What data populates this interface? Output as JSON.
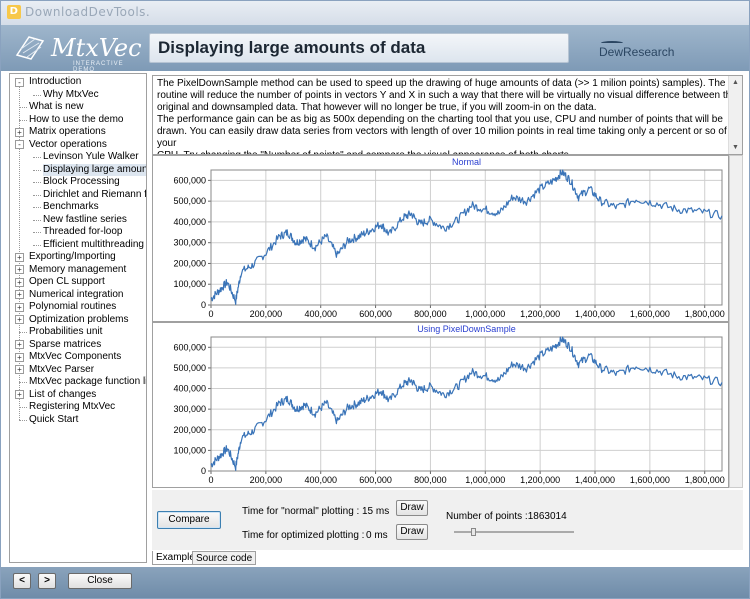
{
  "watermark": "DownloadDevTools.",
  "logo": {
    "name": "MtxVec",
    "subtitle": "INTERACTIVE DEMO"
  },
  "header_title": "Displaying large amounts of data",
  "brand": "DewResearch",
  "tree": [
    {
      "label": "Introduction",
      "level": 0,
      "toggle": "-"
    },
    {
      "label": "Why MtxVec",
      "level": 1
    },
    {
      "label": "What is new",
      "level": 0
    },
    {
      "label": "How to use the demo",
      "level": 0
    },
    {
      "label": "Matrix operations",
      "level": 0,
      "toggle": "+"
    },
    {
      "label": "Vector operations",
      "level": 0,
      "toggle": "-"
    },
    {
      "label": "Levinson Yule Walker",
      "level": 1
    },
    {
      "label": "Displaying large amounts of",
      "level": 1,
      "selected": true
    },
    {
      "label": "Block Processing",
      "level": 1
    },
    {
      "label": "Dirichlet and Riemann funct",
      "level": 1
    },
    {
      "label": "Benchmarks",
      "level": 1
    },
    {
      "label": "New fastline series",
      "level": 1
    },
    {
      "label": "Threaded for-loop",
      "level": 1
    },
    {
      "label": "Efficient multithreading",
      "level": 1
    },
    {
      "label": "Exporting/Importing",
      "level": 0,
      "toggle": "+"
    },
    {
      "label": "Memory management",
      "level": 0,
      "toggle": "+"
    },
    {
      "label": "Open CL support",
      "level": 0,
      "toggle": "+"
    },
    {
      "label": "Numerical integration",
      "level": 0,
      "toggle": "+"
    },
    {
      "label": "Polynomial routines",
      "level": 0,
      "toggle": "+"
    },
    {
      "label": "Optimization problems",
      "level": 0,
      "toggle": "+"
    },
    {
      "label": "Probabilities unit",
      "level": 0
    },
    {
      "label": "Sparse matrices",
      "level": 0,
      "toggle": "+"
    },
    {
      "label": "MtxVec Components",
      "level": 0,
      "toggle": "+"
    },
    {
      "label": "MtxVec Parser",
      "level": 0,
      "toggle": "+"
    },
    {
      "label": "MtxVec package function list",
      "level": 0
    },
    {
      "label": "List of changes",
      "level": 0,
      "toggle": "+"
    },
    {
      "label": "Registering MtxVec",
      "level": 0
    },
    {
      "label": "Quick Start",
      "level": 0
    }
  ],
  "description": [
    "The PixelDownSample method can be used to speed up the drawing of huge amounts of data (>> 1 milion points) samples). The",
    "routine will reduce the number of points in vectors Y and X in such a way that there will be virtually no visual difference between the",
    "original and downsampled data. That however will no longer be true, if you will zoom-in on the data.",
    "The performance gain can be as big as 500x depending on the charting tool that you use, CPU and number of points that will be",
    "drawn. You can easily draw data series from vectors with length of over 10 milion points in real time taking only a percent or so of your",
    "CPU. Try changing the \"Number of points\" and compare the visual appearance of both charts."
  ],
  "chart_data": [
    {
      "type": "line",
      "title": "Normal",
      "xlim": [
        0,
        1863014
      ],
      "ylim": [
        0,
        650000
      ],
      "xticks": [
        0,
        200000,
        400000,
        600000,
        800000,
        1000000,
        1200000,
        1400000,
        1600000,
        1800000
      ],
      "xtick_labels": [
        "0",
        "200,000",
        "400,000",
        "600,000",
        "800,000",
        "1,000,000",
        "1,200,000",
        "1,400,000",
        "1,600,000",
        "1,800,000"
      ],
      "yticks": [
        0,
        100000,
        200000,
        300000,
        400000,
        500000,
        600000
      ],
      "ytick_labels": [
        "0",
        "100,000",
        "200,000",
        "300,000",
        "400,000",
        "500,000",
        "600,000"
      ],
      "color": "#3a74b8",
      "grid": true,
      "series": [
        {
          "x": [
            0,
            30000,
            60000,
            90000,
            110000,
            150000,
            200000,
            250000,
            280000,
            310000,
            340000,
            380000,
            420000,
            460000,
            500000,
            540000,
            580000,
            620000,
            650000,
            700000,
            730000,
            760000,
            800000,
            850000,
            900000,
            950000,
            1000000,
            1050000,
            1100000,
            1150000,
            1200000,
            1250000,
            1280000,
            1310000,
            1340000,
            1380000,
            1420000,
            1480000,
            1550000,
            1620000,
            1700000,
            1780000,
            1863014
          ],
          "y": [
            30000,
            70000,
            110000,
            20000,
            160000,
            190000,
            250000,
            330000,
            350000,
            300000,
            320000,
            280000,
            330000,
            240000,
            310000,
            330000,
            360000,
            390000,
            340000,
            420000,
            440000,
            390000,
            410000,
            370000,
            410000,
            480000,
            460000,
            440000,
            520000,
            500000,
            560000,
            600000,
            640000,
            600000,
            520000,
            560000,
            500000,
            470000,
            510000,
            490000,
            460000,
            450000,
            430000
          ]
        }
      ]
    },
    {
      "type": "line",
      "title": "Using PixelDownSample",
      "xlim": [
        0,
        1863014
      ],
      "ylim": [
        0,
        650000
      ],
      "xticks": [
        0,
        200000,
        400000,
        600000,
        800000,
        1000000,
        1200000,
        1400000,
        1600000,
        1800000
      ],
      "xtick_labels": [
        "0",
        "200,000",
        "400,000",
        "600,000",
        "800,000",
        "1,000,000",
        "1,200,000",
        "1,400,000",
        "1,600,000",
        "1,800,000"
      ],
      "yticks": [
        0,
        100000,
        200000,
        300000,
        400000,
        500000,
        600000
      ],
      "ytick_labels": [
        "0",
        "100,000",
        "200,000",
        "300,000",
        "400,000",
        "500,000",
        "600,000"
      ],
      "color": "#3a74b8",
      "grid": true,
      "series": [
        {
          "x": [
            0,
            30000,
            60000,
            90000,
            110000,
            150000,
            200000,
            250000,
            280000,
            310000,
            340000,
            380000,
            420000,
            460000,
            500000,
            540000,
            580000,
            620000,
            650000,
            700000,
            730000,
            760000,
            800000,
            850000,
            900000,
            950000,
            1000000,
            1050000,
            1100000,
            1150000,
            1200000,
            1250000,
            1280000,
            1310000,
            1340000,
            1380000,
            1420000,
            1480000,
            1550000,
            1620000,
            1700000,
            1780000,
            1863014
          ],
          "y": [
            30000,
            70000,
            110000,
            20000,
            160000,
            190000,
            250000,
            330000,
            350000,
            300000,
            320000,
            280000,
            330000,
            240000,
            310000,
            330000,
            360000,
            390000,
            340000,
            420000,
            440000,
            390000,
            410000,
            370000,
            410000,
            480000,
            460000,
            440000,
            520000,
            500000,
            560000,
            600000,
            640000,
            600000,
            520000,
            560000,
            500000,
            470000,
            510000,
            490000,
            460000,
            450000,
            430000
          ]
        }
      ]
    }
  ],
  "controls": {
    "compare_label": "Compare",
    "normal_time_label": "Time for \"normal\" plotting :",
    "normal_time_value": "15 ms",
    "opt_time_label": "Time for optimized plotting :",
    "opt_time_value": "0 ms",
    "draw_label": "Draw",
    "points_label": "Number of points :1863014",
    "slider_value_fraction": 0.15
  },
  "tabs": [
    "Example",
    "Source code"
  ],
  "nav": {
    "prev": "<",
    "next": ">",
    "close": "Close"
  },
  "theme": {
    "banner": "#8aa5c0",
    "line": "#3a74b8",
    "selected_tree": "#dde6f0"
  }
}
